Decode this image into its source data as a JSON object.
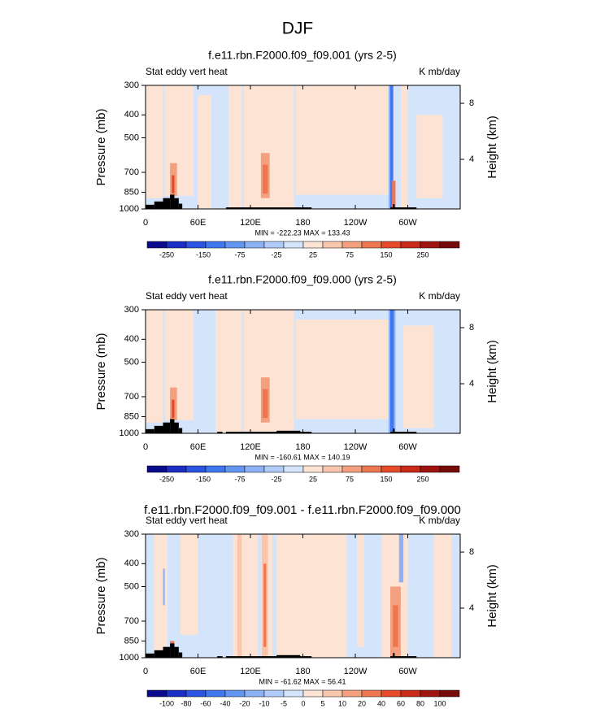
{
  "title": "DJF",
  "chart_data": [
    {
      "type": "contour",
      "title": "f.e11.rbn.F2000.f09_f09.001 (yrs 2-5)",
      "left_label": "Stat eddy vert heat",
      "right_label": "K mb/day",
      "ylabel": "Pressure (mb)",
      "y2label": "Height (km)",
      "stats": "MIN = -222.23  MAX = 133.43",
      "xlim": [
        0,
        360
      ],
      "xticks": [
        0,
        {
          "value": 60,
          "label": "60E"
        },
        {
          "value": 120,
          "label": "120E"
        },
        180,
        {
          "value": 240,
          "label": "120W"
        },
        {
          "value": 300,
          "label": "60W"
        }
      ],
      "yscale": "log",
      "ylim": [
        1000,
        300
      ],
      "yticks": [
        300,
        400,
        500,
        700,
        850,
        1000
      ],
      "y2lim": [
        0.46,
        9.28
      ],
      "y2ticks": [
        4,
        8
      ],
      "colorbar_labels": [
        -250,
        -150,
        -75,
        -25,
        25,
        75,
        150,
        250
      ],
      "colors": [
        "#0a0a8c",
        "#1c2fc4",
        "#2a55e0",
        "#3f78ee",
        "#6396f2",
        "#8cb2f5",
        "#afcbf8",
        "#d3e4fb",
        "#fde3d3",
        "#f9c6ad",
        "#f4a07f",
        "#ee7651",
        "#e64a2a",
        "#c92b18",
        "#a01410",
        "#750a08"
      ]
    },
    {
      "type": "contour",
      "title": "f.e11.rbn.F2000.f09_f09.000 (yrs 2-5)",
      "left_label": "Stat eddy vert heat",
      "right_label": "K mb/day",
      "ylabel": "Pressure (mb)",
      "y2label": "Height (km)",
      "stats": "MIN = -160.61  MAX = 140.19",
      "xlim": [
        0,
        360
      ],
      "xticks": [
        0,
        {
          "value": 60,
          "label": "60E"
        },
        {
          "value": 120,
          "label": "120E"
        },
        180,
        {
          "value": 240,
          "label": "120W"
        },
        {
          "value": 300,
          "label": "60W"
        }
      ],
      "yscale": "log",
      "ylim": [
        1000,
        300
      ],
      "yticks": [
        300,
        400,
        500,
        700,
        850,
        1000
      ],
      "y2lim": [
        0.46,
        9.28
      ],
      "y2ticks": [
        4,
        8
      ],
      "colorbar_labels": [
        -250,
        -150,
        -75,
        -25,
        25,
        75,
        150,
        250
      ],
      "colors": [
        "#0a0a8c",
        "#1c2fc4",
        "#2a55e0",
        "#3f78ee",
        "#6396f2",
        "#8cb2f5",
        "#afcbf8",
        "#d3e4fb",
        "#fde3d3",
        "#f9c6ad",
        "#f4a07f",
        "#ee7651",
        "#e64a2a",
        "#c92b18",
        "#a01410",
        "#750a08"
      ]
    },
    {
      "type": "contour",
      "title": "f.e11.rbn.F2000.f09_f09.001 - f.e11.rbn.F2000.f09_f09.000",
      "left_label": "Stat eddy vert heat",
      "right_label": "K mb/day",
      "ylabel": "Pressure (mb)",
      "y2label": "Height (km)",
      "stats": "MIN = -61.62  MAX = 56.41",
      "xlim": [
        0,
        360
      ],
      "xticks": [
        0,
        {
          "value": 60,
          "label": "60E"
        },
        {
          "value": 120,
          "label": "120E"
        },
        180,
        {
          "value": 240,
          "label": "120W"
        },
        {
          "value": 300,
          "label": "60W"
        }
      ],
      "yscale": "log",
      "ylim": [
        1000,
        300
      ],
      "yticks": [
        300,
        400,
        500,
        700,
        850,
        1000
      ],
      "y2lim": [
        0.46,
        9.28
      ],
      "y2ticks": [
        4,
        8
      ],
      "colorbar_labels": [
        -100,
        -80,
        -60,
        -40,
        -20,
        -10,
        -5,
        0,
        5,
        10,
        20,
        40,
        60,
        80,
        100
      ],
      "colors": [
        "#0a0a8c",
        "#1c2fc4",
        "#2a55e0",
        "#3f78ee",
        "#6396f2",
        "#8cb2f5",
        "#afcbf8",
        "#d3e4fb",
        "#fde3d3",
        "#f9c6ad",
        "#f4a07f",
        "#ee7651",
        "#e64a2a",
        "#c92b18",
        "#a01410",
        "#750a08"
      ]
    }
  ]
}
